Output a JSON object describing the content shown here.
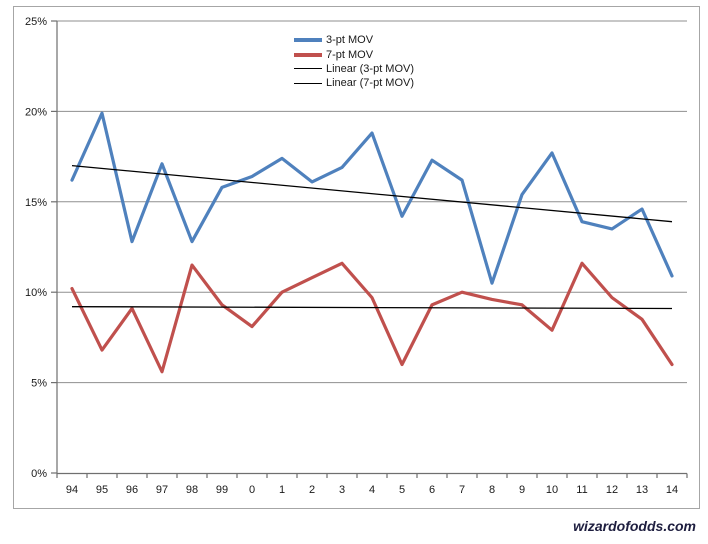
{
  "watermark": "wizardofodds.com",
  "chart_data": {
    "type": "line",
    "title": "",
    "xlabel": "",
    "ylabel": "",
    "categories": [
      "94",
      "95",
      "96",
      "97",
      "98",
      "99",
      "0",
      "1",
      "2",
      "3",
      "4",
      "5",
      "6",
      "7",
      "8",
      "9",
      "10",
      "11",
      "12",
      "13",
      "14"
    ],
    "series": [
      {
        "name": "3-pt MOV",
        "color": "#4F81BD",
        "values": [
          16.2,
          19.9,
          12.8,
          17.1,
          12.8,
          15.8,
          16.4,
          17.4,
          16.1,
          16.9,
          18.8,
          14.2,
          17.3,
          16.2,
          10.5,
          15.4,
          17.7,
          13.9,
          13.5,
          14.6,
          10.9
        ]
      },
      {
        "name": "7-pt MOV",
        "color": "#C0504D",
        "values": [
          10.2,
          6.8,
          9.1,
          5.6,
          11.5,
          9.3,
          8.1,
          10.0,
          10.8,
          11.6,
          9.7,
          6.0,
          9.3,
          10.0,
          9.6,
          9.3,
          7.9,
          11.6,
          9.7,
          8.5,
          6.0
        ]
      }
    ],
    "trendlines": [
      {
        "name": "Linear (3-pt MOV)",
        "color": "#000000",
        "start_value": 17.0,
        "end_value": 13.9
      },
      {
        "name": "Linear (7-pt MOV)",
        "color": "#000000",
        "start_value": 9.2,
        "end_value": 9.1
      }
    ],
    "y_axis": {
      "min": 0,
      "max": 25,
      "step": 5,
      "unit": "%",
      "tick_labels": [
        "0%",
        "5%",
        "10%",
        "15%",
        "20%",
        "25%"
      ]
    },
    "legend_position": "top-center",
    "grid": true,
    "gridline_color": "#8f8f8f",
    "axis_color": "#6f6f6f",
    "text_color": "#1a1a1a",
    "border_color": "#a6a6a6"
  }
}
